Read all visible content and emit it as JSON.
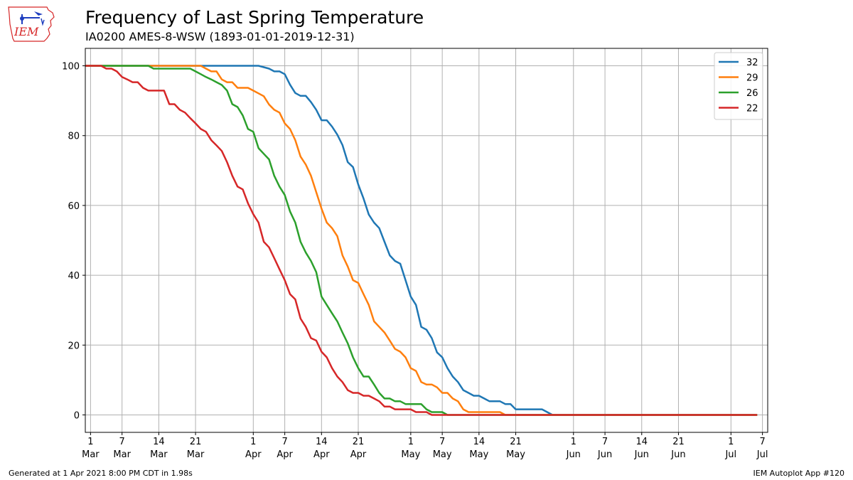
{
  "header": {
    "title": "Frequency of Last Spring Temperature",
    "subtitle": "IA0200 AMES-8-WSW (1893-01-01-2019-12-31)",
    "logo_text": "IEM"
  },
  "footer": {
    "left": "Generated at 1 Apr 2021 8:00 PM CDT in 1.98s",
    "right": "IEM Autoplot App #120"
  },
  "colors": {
    "32": "#1f77b4",
    "29": "#ff7f0e",
    "26": "#2ca02c",
    "22": "#d62728",
    "logo_red": "#d62728",
    "logo_blue": "#1f3fbf"
  },
  "chart_data": {
    "type": "line",
    "title": "Frequency of Last Spring Temperature",
    "xlabel": "",
    "ylabel": "",
    "xlim": [
      59,
      189
    ],
    "ylim": [
      -5,
      105
    ],
    "grid": true,
    "legend_position": "top-right",
    "y_ticks": [
      0,
      20,
      40,
      60,
      80,
      100
    ],
    "x_ticks": [
      {
        "day": 60,
        "day_label": "1",
        "month": "Mar"
      },
      {
        "day": 66,
        "day_label": "7",
        "month": "Mar"
      },
      {
        "day": 73,
        "day_label": "14",
        "month": "Mar"
      },
      {
        "day": 80,
        "day_label": "21",
        "month": "Mar"
      },
      {
        "day": 91,
        "day_label": "1",
        "month": "Apr"
      },
      {
        "day": 97,
        "day_label": "7",
        "month": "Apr"
      },
      {
        "day": 104,
        "day_label": "14",
        "month": "Apr"
      },
      {
        "day": 111,
        "day_label": "21",
        "month": "Apr"
      },
      {
        "day": 121,
        "day_label": "1",
        "month": "May"
      },
      {
        "day": 127,
        "day_label": "7",
        "month": "May"
      },
      {
        "day": 134,
        "day_label": "14",
        "month": "May"
      },
      {
        "day": 141,
        "day_label": "21",
        "month": "May"
      },
      {
        "day": 152,
        "day_label": "1",
        "month": "Jun"
      },
      {
        "day": 158,
        "day_label": "7",
        "month": "Jun"
      },
      {
        "day": 165,
        "day_label": "14",
        "month": "Jun"
      },
      {
        "day": 172,
        "day_label": "21",
        "month": "Jun"
      },
      {
        "day": 182,
        "day_label": "1",
        "month": "Jul"
      },
      {
        "day": 188,
        "day_label": "7",
        "month": "Jul"
      }
    ],
    "series": [
      {
        "name": "32",
        "points": [
          [
            59,
            100
          ],
          [
            88,
            100
          ],
          [
            92,
            100
          ],
          [
            94,
            99.2
          ],
          [
            95,
            98.4
          ],
          [
            96,
            98.4
          ],
          [
            97,
            97.6
          ],
          [
            98,
            94.6
          ],
          [
            99,
            92.2
          ],
          [
            100,
            91.4
          ],
          [
            101,
            91.4
          ],
          [
            102,
            89.6
          ],
          [
            103,
            87.4
          ],
          [
            104,
            84.4
          ],
          [
            105,
            84.4
          ],
          [
            106,
            82.6
          ],
          [
            107,
            80.3
          ],
          [
            108,
            77.3
          ],
          [
            109,
            72.4
          ],
          [
            110,
            71.0
          ],
          [
            111,
            66.0
          ],
          [
            112,
            62.0
          ],
          [
            113,
            57.4
          ],
          [
            114,
            55.1
          ],
          [
            115,
            53.5
          ],
          [
            116,
            49.6
          ],
          [
            117,
            45.7
          ],
          [
            118,
            44.1
          ],
          [
            119,
            43.3
          ],
          [
            120,
            38.6
          ],
          [
            121,
            33.9
          ],
          [
            122,
            31.5
          ],
          [
            123,
            25.2
          ],
          [
            124,
            24.4
          ],
          [
            125,
            22.0
          ],
          [
            126,
            17.9
          ],
          [
            127,
            16.5
          ],
          [
            128,
            13.4
          ],
          [
            129,
            11.0
          ],
          [
            130,
            9.4
          ],
          [
            131,
            7.1
          ],
          [
            132,
            6.3
          ],
          [
            133,
            5.5
          ],
          [
            134,
            5.5
          ],
          [
            135,
            4.7
          ],
          [
            136,
            3.9
          ],
          [
            137,
            3.9
          ],
          [
            138,
            3.9
          ],
          [
            139,
            3.1
          ],
          [
            140,
            3.1
          ],
          [
            141,
            1.6
          ],
          [
            142,
            1.6
          ],
          [
            143,
            1.6
          ],
          [
            144,
            1.6
          ],
          [
            145,
            1.6
          ],
          [
            146,
            1.6
          ],
          [
            147,
            0.8
          ],
          [
            148,
            0
          ],
          [
            187,
            0
          ]
        ]
      },
      {
        "name": "29",
        "points": [
          [
            59,
            100
          ],
          [
            79,
            100
          ],
          [
            81,
            100
          ],
          [
            82,
            99.2
          ],
          [
            83,
            98.4
          ],
          [
            84,
            98.4
          ],
          [
            85,
            96.1
          ],
          [
            86,
            95.3
          ],
          [
            87,
            95.3
          ],
          [
            88,
            93.7
          ],
          [
            89,
            93.7
          ],
          [
            90,
            93.7
          ],
          [
            91,
            92.9
          ],
          [
            92,
            92.1
          ],
          [
            93,
            91.3
          ],
          [
            94,
            88.9
          ],
          [
            95,
            87.4
          ],
          [
            96,
            86.6
          ],
          [
            97,
            83.5
          ],
          [
            98,
            81.9
          ],
          [
            99,
            78.7
          ],
          [
            100,
            74.0
          ],
          [
            101,
            71.7
          ],
          [
            102,
            68.5
          ],
          [
            103,
            63.8
          ],
          [
            104,
            59.1
          ],
          [
            105,
            55.1
          ],
          [
            106,
            53.5
          ],
          [
            107,
            51.2
          ],
          [
            108,
            45.7
          ],
          [
            109,
            42.5
          ],
          [
            110,
            38.6
          ],
          [
            111,
            37.8
          ],
          [
            112,
            34.6
          ],
          [
            113,
            31.5
          ],
          [
            114,
            26.8
          ],
          [
            115,
            25.2
          ],
          [
            116,
            23.6
          ],
          [
            117,
            21.3
          ],
          [
            118,
            18.9
          ],
          [
            119,
            18.1
          ],
          [
            120,
            16.5
          ],
          [
            121,
            13.4
          ],
          [
            122,
            12.6
          ],
          [
            123,
            9.4
          ],
          [
            124,
            8.7
          ],
          [
            125,
            8.7
          ],
          [
            126,
            7.9
          ],
          [
            127,
            6.3
          ],
          [
            128,
            6.3
          ],
          [
            129,
            4.7
          ],
          [
            130,
            3.9
          ],
          [
            131,
            1.6
          ],
          [
            132,
            0.8
          ],
          [
            133,
            0.8
          ],
          [
            137,
            0.8
          ],
          [
            138,
            0.8
          ],
          [
            139,
            0
          ],
          [
            187,
            0
          ]
        ]
      },
      {
        "name": "26",
        "points": [
          [
            59,
            100
          ],
          [
            71,
            100
          ],
          [
            72,
            99.2
          ],
          [
            73,
            99.2
          ],
          [
            79,
            99.2
          ],
          [
            80,
            98.4
          ],
          [
            81,
            97.6
          ],
          [
            82,
            96.8
          ],
          [
            83,
            96.1
          ],
          [
            84,
            95.3
          ],
          [
            85,
            94.5
          ],
          [
            86,
            92.9
          ],
          [
            87,
            89.0
          ],
          [
            88,
            88.2
          ],
          [
            89,
            85.8
          ],
          [
            90,
            81.9
          ],
          [
            91,
            81.1
          ],
          [
            92,
            76.4
          ],
          [
            93,
            74.8
          ],
          [
            94,
            73.2
          ],
          [
            95,
            68.5
          ],
          [
            96,
            65.4
          ],
          [
            97,
            63.0
          ],
          [
            98,
            58.3
          ],
          [
            99,
            55.1
          ],
          [
            100,
            49.6
          ],
          [
            101,
            46.5
          ],
          [
            102,
            44.1
          ],
          [
            103,
            40.9
          ],
          [
            104,
            33.9
          ],
          [
            105,
            31.5
          ],
          [
            106,
            29.1
          ],
          [
            107,
            26.8
          ],
          [
            108,
            23.6
          ],
          [
            109,
            20.5
          ],
          [
            110,
            16.5
          ],
          [
            111,
            13.4
          ],
          [
            112,
            11.0
          ],
          [
            113,
            11.0
          ],
          [
            114,
            8.7
          ],
          [
            115,
            6.3
          ],
          [
            116,
            4.7
          ],
          [
            117,
            4.7
          ],
          [
            118,
            3.9
          ],
          [
            119,
            3.9
          ],
          [
            120,
            3.1
          ],
          [
            121,
            3.1
          ],
          [
            122,
            3.1
          ],
          [
            123,
            3.1
          ],
          [
            124,
            1.6
          ],
          [
            125,
            0.8
          ],
          [
            126,
            0.8
          ],
          [
            127,
            0.8
          ],
          [
            128,
            0
          ],
          [
            187,
            0
          ]
        ]
      },
      {
        "name": "22",
        "points": [
          [
            59,
            100
          ],
          [
            62,
            100
          ],
          [
            63,
            99.2
          ],
          [
            64,
            99.2
          ],
          [
            65,
            98.4
          ],
          [
            66,
            96.8
          ],
          [
            67,
            96.1
          ],
          [
            68,
            95.3
          ],
          [
            69,
            95.3
          ],
          [
            70,
            93.7
          ],
          [
            71,
            92.9
          ],
          [
            72,
            92.9
          ],
          [
            73,
            92.9
          ],
          [
            74,
            92.9
          ],
          [
            75,
            89.0
          ],
          [
            76,
            89.0
          ],
          [
            77,
            87.4
          ],
          [
            78,
            86.6
          ],
          [
            79,
            85.0
          ],
          [
            80,
            83.5
          ],
          [
            81,
            81.9
          ],
          [
            82,
            81.1
          ],
          [
            83,
            78.7
          ],
          [
            84,
            77.2
          ],
          [
            85,
            75.6
          ],
          [
            86,
            72.4
          ],
          [
            87,
            68.5
          ],
          [
            88,
            65.4
          ],
          [
            89,
            64.6
          ],
          [
            90,
            60.6
          ],
          [
            91,
            57.5
          ],
          [
            92,
            55.1
          ],
          [
            93,
            49.6
          ],
          [
            94,
            48.0
          ],
          [
            95,
            44.9
          ],
          [
            96,
            41.7
          ],
          [
            97,
            38.6
          ],
          [
            98,
            34.6
          ],
          [
            99,
            33.1
          ],
          [
            100,
            27.6
          ],
          [
            101,
            25.2
          ],
          [
            102,
            22.0
          ],
          [
            103,
            21.3
          ],
          [
            104,
            18.1
          ],
          [
            105,
            16.5
          ],
          [
            106,
            13.4
          ],
          [
            107,
            11.0
          ],
          [
            108,
            9.4
          ],
          [
            109,
            7.1
          ],
          [
            110,
            6.3
          ],
          [
            111,
            6.3
          ],
          [
            112,
            5.5
          ],
          [
            113,
            5.5
          ],
          [
            114,
            4.7
          ],
          [
            115,
            3.9
          ],
          [
            116,
            2.4
          ],
          [
            117,
            2.4
          ],
          [
            118,
            1.6
          ],
          [
            119,
            1.6
          ],
          [
            120,
            1.6
          ],
          [
            121,
            1.6
          ],
          [
            122,
            0.8
          ],
          [
            123,
            0.8
          ],
          [
            124,
            0.8
          ],
          [
            125,
            0
          ],
          [
            187,
            0
          ]
        ]
      }
    ]
  }
}
